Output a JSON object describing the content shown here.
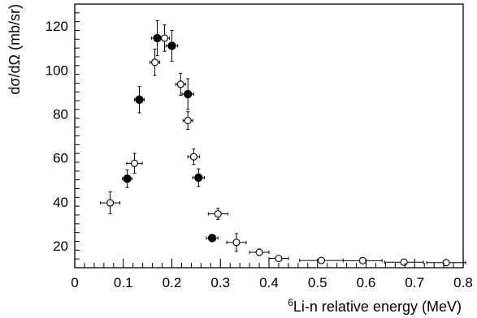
{
  "chart_data": {
    "type": "scatter",
    "title": "",
    "xlabel_sup": "6",
    "xlabel": "Li-n relative energy (MeV)",
    "ylabel": "dσ/dΩ (mb/sr)",
    "xlim": [
      0,
      0.8
    ],
    "ylim": [
      10,
      130
    ],
    "xticks": [
      0,
      0.1,
      0.2,
      0.3,
      0.4,
      0.5,
      0.6,
      0.7,
      0.8
    ],
    "xtick_labels": [
      "0",
      "0.1",
      "0.2",
      "0.3",
      "0.4",
      "0.5",
      "0.6",
      "0.7",
      "0.8"
    ],
    "yticks": [
      20,
      40,
      60,
      80,
      100,
      120
    ],
    "ytick_labels": [
      "20",
      "40",
      "60",
      "80",
      "100",
      "120"
    ],
    "grid": false,
    "series": [
      {
        "marker": "filled-circle",
        "color": "#000000",
        "points": [
          {
            "x": 0.108,
            "y": 50.5,
            "xerr": 0.01,
            "yerr": 4
          },
          {
            "x": 0.133,
            "y": 86.5,
            "xerr": 0.01,
            "yerr": 6
          },
          {
            "x": 0.17,
            "y": 114.5,
            "xerr": 0.012,
            "yerr": 8
          },
          {
            "x": 0.2,
            "y": 111.0,
            "xerr": 0.012,
            "yerr": 7
          },
          {
            "x": 0.233,
            "y": 89.0,
            "xerr": 0.012,
            "yerr": 7
          },
          {
            "x": 0.255,
            "y": 51.0,
            "xerr": 0.012,
            "yerr": 4
          },
          {
            "x": 0.283,
            "y": 23.5,
            "xerr": 0.012,
            "yerr": 1.5
          }
        ]
      },
      {
        "marker": "open-circle",
        "color": "#000000",
        "points": [
          {
            "x": 0.073,
            "y": 39.5,
            "xerr": 0.02,
            "yerr": 5
          },
          {
            "x": 0.123,
            "y": 57.5,
            "xerr": 0.016,
            "yerr": 4.5
          },
          {
            "x": 0.165,
            "y": 103.5,
            "xerr": 0.01,
            "yerr": 6
          },
          {
            "x": 0.185,
            "y": 114.5,
            "xerr": 0.01,
            "yerr": 6
          },
          {
            "x": 0.218,
            "y": 93.5,
            "xerr": 0.01,
            "yerr": 5
          },
          {
            "x": 0.233,
            "y": 77.0,
            "xerr": 0.01,
            "yerr": 4
          },
          {
            "x": 0.245,
            "y": 60.5,
            "xerr": 0.012,
            "yerr": 3.5
          },
          {
            "x": 0.295,
            "y": 34.5,
            "xerr": 0.02,
            "yerr": 2.5
          },
          {
            "x": 0.333,
            "y": 21.5,
            "xerr": 0.02,
            "yerr": 4
          },
          {
            "x": 0.38,
            "y": 17.0,
            "xerr": 0.02,
            "yerr": 1.5
          },
          {
            "x": 0.42,
            "y": 14.2,
            "xerr": 0.02,
            "yerr": 1
          },
          {
            "x": 0.508,
            "y": 13.3,
            "xerr": 0.045,
            "yerr": 1
          },
          {
            "x": 0.593,
            "y": 13.2,
            "xerr": 0.04,
            "yerr": 1
          },
          {
            "x": 0.678,
            "y": 12.5,
            "xerr": 0.04,
            "yerr": 1
          },
          {
            "x": 0.765,
            "y": 12.3,
            "xerr": 0.04,
            "yerr": 1
          }
        ]
      }
    ]
  }
}
